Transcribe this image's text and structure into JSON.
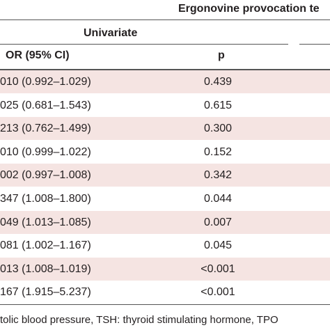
{
  "header": {
    "title": "Ergonovine provocation te",
    "group": "Univariate",
    "columns": [
      "OR (95% CI)",
      "p"
    ]
  },
  "rows": [
    [
      "010 (0.992–1.029)",
      "0.439"
    ],
    [
      "025 (0.681–1.543)",
      "0.615"
    ],
    [
      "213 (0.762–1.499)",
      "0.300"
    ],
    [
      "010 (0.999–1.022)",
      "0.152"
    ],
    [
      "002 (0.997–1.008)",
      "0.342"
    ],
    [
      "347 (1.008–1.800)",
      "0.044"
    ],
    [
      "049 (1.013–1.085)",
      "0.007"
    ],
    [
      "081 (1.002–1.167)",
      "0.045"
    ],
    [
      "013 (1.008–1.019)",
      "<0.001"
    ],
    [
      "167 (1.915–5.237)",
      "<0.001"
    ]
  ],
  "footer": "tolic blood pressure, TSH: thyroid stimulating hormone, TPO"
}
